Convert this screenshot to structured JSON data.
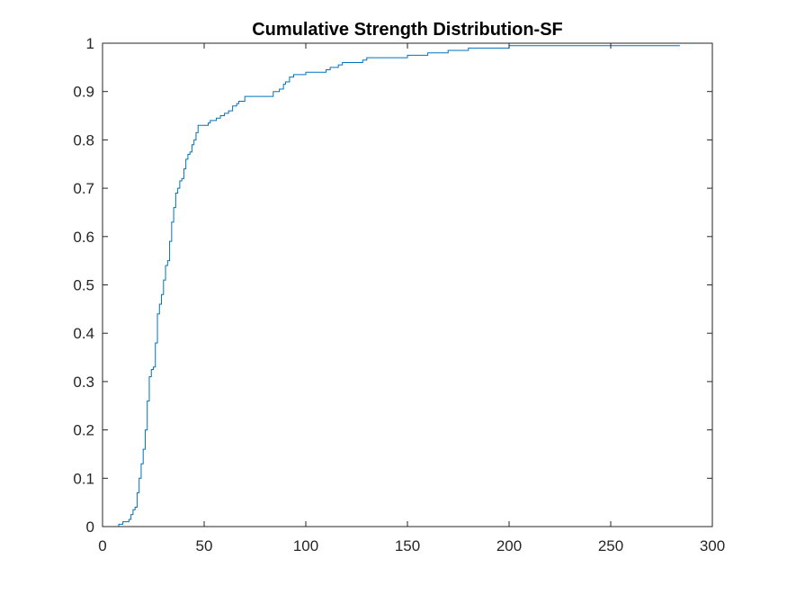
{
  "chart_data": {
    "type": "line",
    "title": "Cumulative Strength Distribution-SF",
    "xlabel": "",
    "ylabel": "",
    "xlim": [
      0,
      300
    ],
    "ylim": [
      0,
      1
    ],
    "xticks": [
      0,
      50,
      100,
      150,
      200,
      250,
      300
    ],
    "xtick_labels": [
      "0",
      "50",
      "100",
      "150",
      "200",
      "250",
      "300"
    ],
    "yticks": [
      0,
      0.1,
      0.2,
      0.3,
      0.4,
      0.5,
      0.6,
      0.7,
      0.8,
      0.9,
      1
    ],
    "ytick_labels": [
      "0",
      "0.1",
      "0.2",
      "0.3",
      "0.4",
      "0.5",
      "0.6",
      "0.7",
      "0.8",
      "0.9",
      "1"
    ],
    "grid": false,
    "legend": "none",
    "colors": {
      "line": "#0072BD",
      "axis": "#262626",
      "background": "#ffffff"
    },
    "series": [
      {
        "x": [
          0,
          6,
          8,
          10,
          13,
          14,
          15,
          16,
          17,
          18,
          19,
          20,
          21,
          22,
          23,
          24,
          25,
          26,
          27,
          28,
          29,
          30,
          31,
          32,
          33,
          34,
          35,
          36,
          37,
          38,
          39,
          40,
          41,
          42,
          43,
          44,
          45,
          46,
          47,
          48,
          52,
          53,
          56,
          58,
          60,
          62,
          64,
          66,
          67,
          70,
          74,
          80,
          84,
          87,
          89,
          90,
          92,
          94,
          100,
          110,
          112,
          116,
          118,
          120,
          128,
          130,
          140,
          150,
          152,
          160,
          170,
          180,
          200,
          284
        ],
        "y": [
          0,
          0,
          0.005,
          0.01,
          0.015,
          0.025,
          0.035,
          0.04,
          0.07,
          0.1,
          0.13,
          0.16,
          0.2,
          0.26,
          0.31,
          0.325,
          0.33,
          0.38,
          0.44,
          0.46,
          0.48,
          0.51,
          0.54,
          0.55,
          0.59,
          0.63,
          0.66,
          0.69,
          0.7,
          0.715,
          0.72,
          0.74,
          0.76,
          0.77,
          0.775,
          0.79,
          0.8,
          0.815,
          0.83,
          0.83,
          0.835,
          0.84,
          0.845,
          0.85,
          0.855,
          0.86,
          0.87,
          0.875,
          0.88,
          0.89,
          0.89,
          0.89,
          0.9,
          0.905,
          0.915,
          0.92,
          0.93,
          0.935,
          0.94,
          0.945,
          0.95,
          0.955,
          0.96,
          0.96,
          0.965,
          0.97,
          0.97,
          0.975,
          0.975,
          0.98,
          0.985,
          0.99,
          0.995,
          0.995
        ]
      }
    ]
  }
}
